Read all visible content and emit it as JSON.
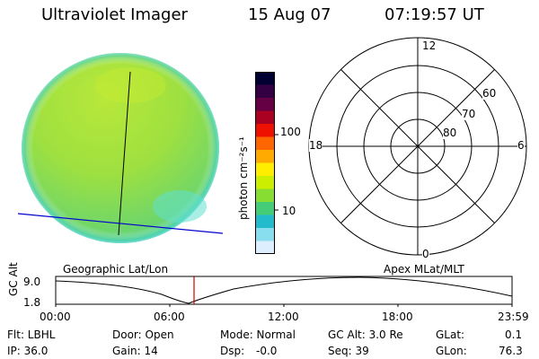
{
  "header": {
    "instrument": "Ultraviolet Imager",
    "date": "15 Aug 07",
    "time": "07:19:57 UT"
  },
  "colorbar": {
    "unit_label": "photon cm⁻²s⁻¹",
    "ticks": [
      "100",
      "10"
    ],
    "colors": [
      "#000033",
      "#330044",
      "#660044",
      "#aa0022",
      "#ee1100",
      "#ff6600",
      "#ffaa00",
      "#ffee00",
      "#ccee00",
      "#88dd33",
      "#44cc77",
      "#22bbcc",
      "#88ddee",
      "#ddeeff"
    ]
  },
  "polar_plot": {
    "mlt_labels": [
      "12",
      "18",
      "6",
      "0"
    ],
    "mlat_labels": [
      "60",
      "70",
      "80"
    ]
  },
  "panel_labels": {
    "left": "Geographic Lat/Lon",
    "right": "Apex MLat/MLT"
  },
  "altitude_plot": {
    "ylabel": "GC Alt",
    "y_ticks": [
      "9.0",
      "1.8"
    ],
    "x_ticks": [
      "00:00",
      "06:00",
      "12:00",
      "18:00",
      "23:59"
    ]
  },
  "info": {
    "flt": "Flt: LBHL",
    "door": "Door: Open",
    "mode": "Mode: Normal",
    "gc_alt": "GC Alt: 3.0 Re",
    "glat": "GLat:",
    "glat_val": "0.1",
    "ip": "IP: 36.0",
    "gain": "Gain: 14",
    "dsp": "Dsp:",
    "dsp_val": "-0.0",
    "seq": "Seq: 39",
    "glon": "GLon:",
    "glon_val": "76.3"
  }
}
